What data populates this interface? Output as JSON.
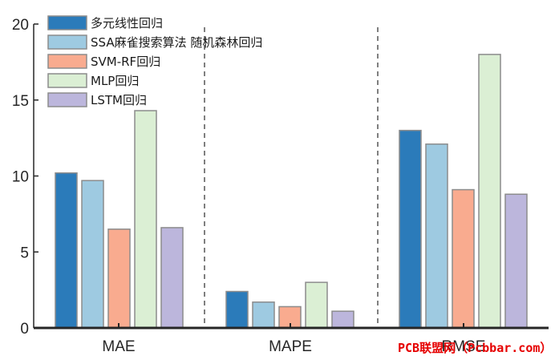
{
  "chart_data": {
    "type": "bar",
    "title": "",
    "xlabel": "",
    "ylabel": "",
    "categories": [
      "MAE",
      "MAPE",
      "RMSE"
    ],
    "ylim": [
      0,
      20
    ],
    "yticks": [
      0,
      5,
      10,
      15,
      20
    ],
    "grid": false,
    "legend_position": "top-left",
    "separators": "dashed",
    "series": [
      {
        "name": "多元线性回归",
        "color": "#2b7bba",
        "values": [
          10.2,
          2.4,
          13.0
        ]
      },
      {
        "name": "SSA麻雀搜索算法 随机森林回归",
        "color": "#9ecae1",
        "values": [
          9.7,
          1.7,
          12.1
        ]
      },
      {
        "name": "SVM-RF回归",
        "color": "#f9ab8f",
        "values": [
          6.5,
          1.4,
          9.1
        ]
      },
      {
        "name": "MLP回归",
        "color": "#dbefd4",
        "values": [
          14.3,
          3.0,
          18.0
        ]
      },
      {
        "name": "LSTM回归",
        "color": "#bcb6dc",
        "values": [
          6.6,
          1.1,
          8.8
        ]
      }
    ]
  },
  "watermark": "PCB联盟网（Pcbbar.com）"
}
